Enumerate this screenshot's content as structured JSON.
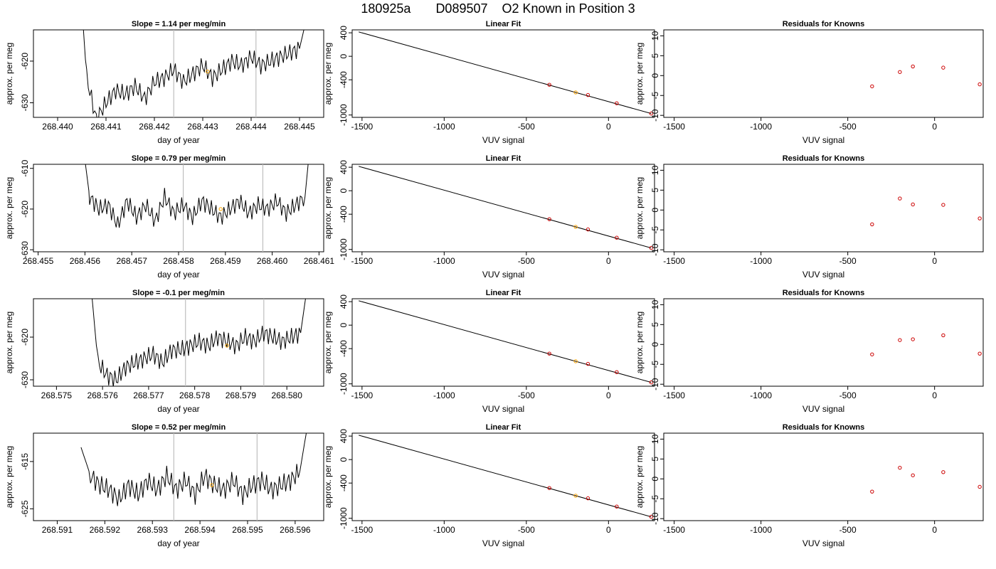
{
  "page_title": {
    "run": "180925a",
    "sample": "D089507",
    "label": "O2 Known in Position  3"
  },
  "colors": {
    "line": "#000000",
    "highlight": "#FFA500",
    "point": "#CC0000",
    "guide": "#BEBEBE"
  },
  "chart_data": [
    {
      "type": "line",
      "panel": "trace",
      "row": 1,
      "title": "Slope =  1.14  per meg/min",
      "xlabel": "day of year",
      "ylabel": "approx. per meg",
      "xlim": [
        268.4395,
        268.4455
      ],
      "ylim": [
        -633.5,
        -612.5
      ],
      "xticks": [
        268.44,
        268.441,
        268.442,
        268.443,
        268.444,
        268.445
      ],
      "xtick_labels": [
        "268.440",
        "268.441",
        "268.442",
        "268.443",
        "268.444",
        "268.445"
      ],
      "yticks": [
        -620,
        -630
      ],
      "ytick_labels": [
        "-620",
        "-630"
      ],
      "xstart": 268.44045,
      "xend": 268.44518,
      "vlines": [
        268.4424,
        268.4441
      ],
      "highlight": {
        "x": 268.4431,
        "y": -622.5
      },
      "series": [
        {
          "x": [
            268.44045,
            268.4406,
            268.4408,
            268.441,
            268.4412,
            268.4414,
            268.4416,
            268.4418,
            268.442,
            268.4422,
            268.4424,
            268.4426,
            268.4428,
            268.443,
            268.4432,
            268.4434,
            268.4436,
            268.4438,
            268.444,
            268.4442,
            268.4444,
            268.4446,
            268.4448,
            268.445,
            268.44518
          ],
          "y": [
            -598,
            -624,
            -634,
            -630,
            -627,
            -628,
            -626,
            -629,
            -625,
            -624,
            -622,
            -625,
            -623,
            -621,
            -624,
            -622,
            -620,
            -621,
            -619,
            -621,
            -620,
            -619,
            -618,
            -617,
            -608
          ]
        }
      ]
    },
    {
      "type": "line",
      "panel": "fit",
      "row": 1,
      "title": "Linear Fit",
      "xlabel": "VUV signal",
      "ylabel": "approx. per meg",
      "xlim": [
        -1560,
        280
      ],
      "ylim": [
        -1040,
        450
      ],
      "xticks": [
        -1500,
        -1000,
        -500,
        0
      ],
      "xtick_labels": [
        "-1500",
        "-1000",
        "-500",
        "0"
      ],
      "yticks": [
        400,
        0,
        -400,
        -1000
      ],
      "ytick_labels": [
        "400",
        "0",
        "-400",
        "-1000"
      ],
      "line": [
        [
          -1520,
          415
        ],
        [
          260,
          -975
        ]
      ],
      "points": {
        "x": [
          -360,
          -200,
          -125,
          50,
          260
        ],
        "y": [
          -485,
          -615,
          -660,
          -800,
          -975
        ]
      },
      "highlight_point": -200
    },
    {
      "type": "scatter",
      "panel": "residuals",
      "row": 1,
      "title": "Residuals for Knowns",
      "xlabel": "VUV signal",
      "ylabel": "approx. per meg",
      "xlim": [
        -1560,
        280
      ],
      "ylim": [
        -10.5,
        11.5
      ],
      "xticks": [
        -1500,
        -1000,
        -500,
        0
      ],
      "xtick_labels": [
        "-1500",
        "-1000",
        "-500",
        "0"
      ],
      "yticks": [
        10,
        5,
        0,
        -5,
        -10
      ],
      "ytick_labels": [
        "10",
        "5",
        "0",
        "-5",
        "-10"
      ],
      "points": {
        "x": [
          -360,
          -200,
          -125,
          50,
          260
        ],
        "y": [
          -2.7,
          0.9,
          2.3,
          2.0,
          -2.2
        ]
      }
    },
    {
      "type": "line",
      "panel": "trace",
      "row": 2,
      "title": "Slope =  0.79  per meg/min",
      "xlabel": "day of year",
      "ylabel": "approx. per meg",
      "xlim": [
        268.4549,
        268.4611
      ],
      "ylim": [
        -630.5,
        -609
      ],
      "xticks": [
        268.455,
        268.456,
        268.457,
        268.458,
        268.459,
        268.46,
        268.461
      ],
      "xtick_labels": [
        "268.455",
        "268.456",
        "268.457",
        "268.458",
        "268.459",
        "268.460",
        "268.461"
      ],
      "yticks": [
        -610,
        -620,
        -630
      ],
      "ytick_labels": [
        "-610",
        "-620",
        "-630"
      ],
      "xstart": 268.456,
      "xend": 268.4608,
      "vlines": [
        268.4581,
        268.4598
      ],
      "highlight": {
        "x": 268.4589,
        "y": -620
      },
      "series": [
        {
          "x": [
            268.456,
            268.4561,
            268.4563,
            268.4565,
            268.4567,
            268.4569,
            268.4571,
            268.4573,
            268.4575,
            268.4577,
            268.4579,
            268.4581,
            268.4583,
            268.4585,
            268.4587,
            268.4589,
            268.4591,
            268.4593,
            268.4595,
            268.4597,
            268.4599,
            268.4601,
            268.4603,
            268.4605,
            268.4607,
            268.4608
          ],
          "y": [
            -608,
            -617,
            -620,
            -619,
            -624,
            -618,
            -622,
            -619,
            -623,
            -617,
            -621,
            -619,
            -622,
            -618,
            -620,
            -622,
            -620,
            -618,
            -621,
            -619,
            -620,
            -618,
            -621,
            -619,
            -617,
            -605
          ]
        }
      ]
    },
    {
      "type": "line",
      "panel": "fit",
      "row": 2,
      "title": "Linear Fit",
      "xlabel": "VUV signal",
      "ylabel": "approx. per meg",
      "xlim": [
        -1560,
        280
      ],
      "ylim": [
        -1040,
        450
      ],
      "xticks": [
        -1500,
        -1000,
        -500,
        0
      ],
      "xtick_labels": [
        "-1500",
        "-1000",
        "-500",
        "0"
      ],
      "yticks": [
        400,
        0,
        -400,
        -1000
      ],
      "ytick_labels": [
        "400",
        "0",
        "-400",
        "-1000"
      ],
      "line": [
        [
          -1520,
          415
        ],
        [
          260,
          -975
        ]
      ],
      "points": {
        "x": [
          -360,
          -200,
          -125,
          50,
          260
        ],
        "y": [
          -485,
          -615,
          -660,
          -800,
          -975
        ]
      },
      "highlight_point": -200
    },
    {
      "type": "scatter",
      "panel": "residuals",
      "row": 2,
      "title": "Residuals for Knowns",
      "xlabel": "VUV signal",
      "ylabel": "approx. per meg",
      "xlim": [
        -1560,
        280
      ],
      "ylim": [
        -10.5,
        11.5
      ],
      "xticks": [
        -1500,
        -1000,
        -500,
        0
      ],
      "xtick_labels": [
        "-1500",
        "-1000",
        "-500",
        "0"
      ],
      "yticks": [
        10,
        5,
        0,
        -5,
        -10
      ],
      "ytick_labels": [
        "10",
        "5",
        "0",
        "-5",
        "-10"
      ],
      "points": {
        "x": [
          -360,
          -200,
          -125,
          50,
          260
        ],
        "y": [
          -3.6,
          2.9,
          1.4,
          1.3,
          -2.1
        ]
      }
    },
    {
      "type": "line",
      "panel": "trace",
      "row": 3,
      "title": "Slope =  -0.1  per meg/min",
      "xlabel": "day of year",
      "ylabel": "approx. per meg",
      "xlim": [
        268.5745,
        268.5808
      ],
      "ylim": [
        -631.5,
        -611
      ],
      "xticks": [
        268.575,
        268.576,
        268.577,
        268.578,
        268.579,
        268.58
      ],
      "xtick_labels": [
        "268.575",
        "268.576",
        "268.577",
        "268.578",
        "268.579",
        "268.580"
      ],
      "yticks": [
        -620,
        -630
      ],
      "ytick_labels": [
        "-620",
        "-630"
      ],
      "xstart": 268.5757,
      "xend": 268.58055,
      "vlines": [
        268.5778,
        268.5795
      ],
      "highlight": {
        "x": 268.5787,
        "y": -622
      },
      "series": [
        {
          "x": [
            268.5757,
            268.5759,
            268.5761,
            268.5763,
            268.5765,
            268.5767,
            268.5769,
            268.5771,
            268.5773,
            268.5775,
            268.5777,
            268.5779,
            268.5781,
            268.5783,
            268.5785,
            268.5787,
            268.5789,
            268.5791,
            268.5793,
            268.5795,
            268.5797,
            268.5799,
            268.5801,
            268.5803,
            268.58055
          ],
          "y": [
            -602,
            -626,
            -629,
            -630,
            -627,
            -626,
            -625,
            -624,
            -626,
            -623,
            -623,
            -622,
            -621,
            -622,
            -620,
            -621,
            -622,
            -620,
            -621,
            -619,
            -620,
            -621,
            -620,
            -619,
            -600
          ]
        }
      ]
    },
    {
      "type": "line",
      "panel": "fit",
      "row": 3,
      "title": "Linear Fit",
      "xlabel": "VUV signal",
      "ylabel": "approx. per meg",
      "xlim": [
        -1560,
        280
      ],
      "ylim": [
        -1040,
        450
      ],
      "xticks": [
        -1500,
        -1000,
        -500,
        0
      ],
      "xtick_labels": [
        "-1500",
        "-1000",
        "-500",
        "0"
      ],
      "yticks": [
        400,
        0,
        -400,
        -1000
      ],
      "ytick_labels": [
        "400",
        "0",
        "-400",
        "-1000"
      ],
      "line": [
        [
          -1520,
          415
        ],
        [
          260,
          -975
        ]
      ],
      "points": {
        "x": [
          -360,
          -200,
          -125,
          50,
          260
        ],
        "y": [
          -485,
          -615,
          -660,
          -800,
          -975
        ]
      },
      "highlight_point": -200
    },
    {
      "type": "scatter",
      "panel": "residuals",
      "row": 3,
      "title": "Residuals for Knowns",
      "xlabel": "VUV signal",
      "ylabel": "approx. per meg",
      "xlim": [
        -1560,
        280
      ],
      "ylim": [
        -10.5,
        11.5
      ],
      "xticks": [
        -1500,
        -1000,
        -500,
        0
      ],
      "xtick_labels": [
        "-1500",
        "-1000",
        "-500",
        "0"
      ],
      "yticks": [
        10,
        5,
        0,
        -5,
        -10
      ],
      "ytick_labels": [
        "10",
        "5",
        "0",
        "-5",
        "-10"
      ],
      "points": {
        "x": [
          -360,
          -200,
          -125,
          50,
          260
        ],
        "y": [
          -2.5,
          1.1,
          1.3,
          2.3,
          -2.3
        ]
      }
    },
    {
      "type": "line",
      "panel": "trace",
      "row": 4,
      "title": "Slope =  0.52  per meg/min",
      "xlabel": "day of year",
      "ylabel": "approx. per meg",
      "xlim": [
        268.5905,
        268.5966
      ],
      "ylim": [
        -627.5,
        -609
      ],
      "xticks": [
        268.591,
        268.592,
        268.593,
        268.594,
        268.595,
        268.596
      ],
      "xtick_labels": [
        "268.591",
        "268.592",
        "268.593",
        "268.594",
        "268.595",
        "268.596"
      ],
      "yticks": [
        -615,
        -625
      ],
      "ytick_labels": [
        "-615",
        "-625"
      ],
      "xstart": 268.5915,
      "xend": 268.5963,
      "vlines": [
        268.59345,
        268.5952
      ],
      "highlight": {
        "x": 268.59425,
        "y": -620
      },
      "series": [
        {
          "x": [
            268.5915,
            268.5917,
            268.5919,
            268.5921,
            268.5923,
            268.5925,
            268.5927,
            268.5929,
            268.5931,
            268.5933,
            268.5935,
            268.5937,
            268.5939,
            268.5941,
            268.5943,
            268.5945,
            268.5947,
            268.5949,
            268.5951,
            268.5953,
            268.5955,
            268.5957,
            268.5959,
            268.5961,
            268.5963
          ],
          "y": [
            -612,
            -618,
            -620,
            -621,
            -623,
            -620,
            -622,
            -619,
            -621,
            -618,
            -621,
            -619,
            -622,
            -618,
            -620,
            -621,
            -619,
            -622,
            -620,
            -619,
            -621,
            -620,
            -619,
            -617,
            -605
          ]
        }
      ]
    },
    {
      "type": "line",
      "panel": "fit",
      "row": 4,
      "title": "Linear Fit",
      "xlabel": "VUV signal",
      "ylabel": "approx. per meg",
      "xlim": [
        -1560,
        280
      ],
      "ylim": [
        -1040,
        450
      ],
      "xticks": [
        -1500,
        -1000,
        -500,
        0
      ],
      "xtick_labels": [
        "-1500",
        "-1000",
        "-500",
        "0"
      ],
      "yticks": [
        400,
        0,
        -400,
        -1000
      ],
      "ytick_labels": [
        "400",
        "0",
        "-400",
        "-1000"
      ],
      "line": [
        [
          -1520,
          415
        ],
        [
          260,
          -975
        ]
      ],
      "points": {
        "x": [
          -360,
          -200,
          -125,
          50,
          260
        ],
        "y": [
          -485,
          -615,
          -660,
          -800,
          -975
        ]
      },
      "highlight_point": -200
    },
    {
      "type": "scatter",
      "panel": "residuals",
      "row": 4,
      "title": "Residuals for Knowns",
      "xlabel": "VUV signal",
      "ylabel": "approx. per meg",
      "xlim": [
        -1560,
        280
      ],
      "ylim": [
        -10.5,
        11.5
      ],
      "xticks": [
        -1500,
        -1000,
        -500,
        0
      ],
      "xtick_labels": [
        "-1500",
        "-1000",
        "-500",
        "0"
      ],
      "yticks": [
        10,
        5,
        0,
        -5,
        -10
      ],
      "ytick_labels": [
        "10",
        "5",
        "0",
        "-5",
        "-10"
      ],
      "points": {
        "x": [
          -360,
          -200,
          -125,
          50,
          260
        ],
        "y": [
          -3.2,
          2.8,
          0.9,
          1.7,
          -2.0
        ]
      }
    }
  ]
}
